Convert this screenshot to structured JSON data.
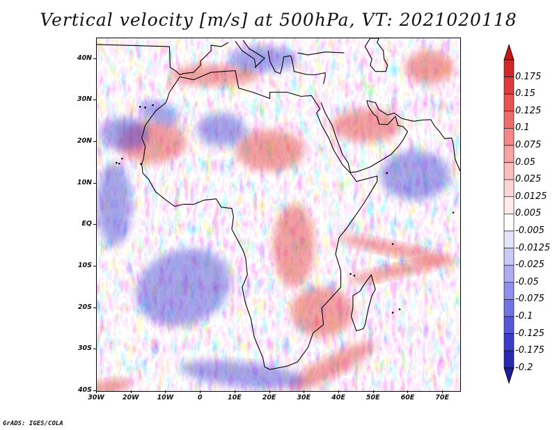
{
  "title": "Vertical velocity [m/s] at 500hPa, VT: 2021020118",
  "credit": "GrADS: IGES/COLA",
  "map": {
    "projection": "latlon",
    "lon_range": [
      -30,
      75
    ],
    "lat_range": [
      -40,
      45
    ],
    "x_ticks": [
      {
        "value": -30,
        "label": "30W"
      },
      {
        "value": -20,
        "label": "20W"
      },
      {
        "value": -10,
        "label": "10W"
      },
      {
        "value": 0,
        "label": "0"
      },
      {
        "value": 10,
        "label": "10E"
      },
      {
        "value": 20,
        "label": "20E"
      },
      {
        "value": 30,
        "label": "30E"
      },
      {
        "value": 40,
        "label": "40E"
      },
      {
        "value": 50,
        "label": "50E"
      },
      {
        "value": 60,
        "label": "60E"
      },
      {
        "value": 70,
        "label": "70E"
      }
    ],
    "y_ticks": [
      {
        "value": 40,
        "label": "40N"
      },
      {
        "value": 30,
        "label": "30N"
      },
      {
        "value": 20,
        "label": "20N"
      },
      {
        "value": 10,
        "label": "10N"
      },
      {
        "value": 0,
        "label": "EQ"
      },
      {
        "value": -10,
        "label": "10S"
      },
      {
        "value": -20,
        "label": "20S"
      },
      {
        "value": -30,
        "label": "30S"
      },
      {
        "value": -40,
        "label": "40S"
      }
    ],
    "field": "vertical velocity",
    "units": "m/s",
    "level": "500hPa",
    "valid_time": "2021020118",
    "features": {
      "africa_coast": [
        [
          -17,
          21
        ],
        [
          -16,
          24
        ],
        [
          -13,
          27.5
        ],
        [
          -10,
          29.5
        ],
        [
          -9,
          32
        ],
        [
          -6,
          35.7
        ],
        [
          -2,
          35
        ],
        [
          3,
          36.8
        ],
        [
          10,
          37.2
        ],
        [
          11,
          33
        ],
        [
          15,
          32
        ],
        [
          20,
          30.5
        ],
        [
          20,
          32
        ],
        [
          25,
          32
        ],
        [
          29,
          31
        ],
        [
          32,
          31.2
        ],
        [
          34.5,
          28
        ],
        [
          33.5,
          27
        ],
        [
          35,
          24
        ],
        [
          37,
          21
        ],
        [
          38.5,
          18
        ],
        [
          41,
          14.5
        ],
        [
          43.3,
          12.5
        ],
        [
          45,
          10.5
        ],
        [
          51,
          11.8
        ],
        [
          51,
          10.5
        ],
        [
          47,
          5
        ],
        [
          42,
          -1
        ],
        [
          40,
          -3
        ],
        [
          39,
          -7
        ],
        [
          40.5,
          -11
        ],
        [
          40.5,
          -15
        ],
        [
          35,
          -20
        ],
        [
          35.5,
          -24
        ],
        [
          32.5,
          -26
        ],
        [
          31,
          -29.5
        ],
        [
          28,
          -33
        ],
        [
          25,
          -34
        ],
        [
          20,
          -34.8
        ],
        [
          18.5,
          -34.2
        ],
        [
          18,
          -32
        ],
        [
          15.5,
          -27
        ],
        [
          14.5,
          -22.5
        ],
        [
          13,
          -19
        ],
        [
          12,
          -15
        ],
        [
          13.5,
          -12
        ],
        [
          13,
          -8
        ],
        [
          12.2,
          -6
        ],
        [
          9,
          -1
        ],
        [
          9.5,
          2
        ],
        [
          9,
          4
        ],
        [
          6,
          4.3
        ],
        [
          4.5,
          6.3
        ],
        [
          1,
          6
        ],
        [
          -2,
          5
        ],
        [
          -5,
          5
        ],
        [
          -7.5,
          4.5
        ],
        [
          -10,
          6
        ],
        [
          -13,
          8
        ],
        [
          -15,
          11
        ],
        [
          -16.7,
          12.5
        ],
        [
          -17,
          14.7
        ],
        [
          -16.5,
          16
        ],
        [
          -16,
          19
        ],
        [
          -17,
          21
        ]
      ],
      "madagascar": [
        [
          49.3,
          -12
        ],
        [
          50.5,
          -15.5
        ],
        [
          49.5,
          -17
        ],
        [
          48.5,
          -20
        ],
        [
          47.5,
          -24
        ],
        [
          47,
          -25
        ],
        [
          45,
          -25.5
        ],
        [
          43.5,
          -22
        ],
        [
          44,
          -20
        ],
        [
          44,
          -17
        ],
        [
          46,
          -16
        ],
        [
          47.5,
          -14
        ],
        [
          49.3,
          -12
        ]
      ],
      "arabia": [
        [
          34.8,
          29.5
        ],
        [
          36,
          27
        ],
        [
          38,
          24
        ],
        [
          39,
          21.5
        ],
        [
          41,
          17
        ],
        [
          42.6,
          15
        ],
        [
          43.3,
          12.7
        ],
        [
          45,
          12.8
        ],
        [
          49,
          14
        ],
        [
          52,
          15.5
        ],
        [
          55,
          17
        ],
        [
          57,
          18.8
        ],
        [
          58.5,
          20.5
        ],
        [
          59.8,
          22.5
        ],
        [
          58.5,
          23.7
        ],
        [
          57,
          24
        ],
        [
          56.3,
          26.2
        ],
        [
          55.5,
          25.5
        ],
        [
          54,
          24.2
        ],
        [
          51.6,
          24.3
        ],
        [
          51,
          26
        ],
        [
          50,
          26.7
        ],
        [
          48.5,
          28.5
        ],
        [
          48,
          30
        ]
      ],
      "europe_south": [
        [
          -30,
          43.5
        ],
        [
          -9,
          43
        ],
        [
          -8.8,
          38
        ],
        [
          -7,
          37
        ],
        [
          -6,
          36.2
        ],
        [
          -5,
          36.5
        ],
        [
          -2,
          36.8
        ],
        [
          0,
          38.5
        ],
        [
          0,
          39.5
        ],
        [
          3,
          42
        ],
        [
          3,
          43.3
        ],
        [
          6,
          43
        ],
        [
          8,
          44
        ]
      ],
      "italy": [
        [
          10,
          44.3
        ],
        [
          12,
          42
        ],
        [
          15.5,
          40
        ],
        [
          16,
          38
        ],
        [
          15.7,
          38
        ],
        [
          17,
          39
        ],
        [
          18.5,
          40.2
        ],
        [
          16,
          41.5
        ],
        [
          14,
          42.5
        ],
        [
          12.3,
          44.5
        ]
      ],
      "greece_turkey": [
        [
          19.5,
          42
        ],
        [
          20,
          39.5
        ],
        [
          21.5,
          37
        ],
        [
          23,
          36.5
        ],
        [
          23.5,
          38
        ],
        [
          24,
          40.5
        ],
        [
          26,
          40.8
        ],
        [
          26.5,
          39.5
        ],
        [
          27,
          37
        ],
        [
          28.5,
          36.7
        ],
        [
          30.5,
          36.3
        ],
        [
          33,
          36.2
        ],
        [
          36,
          36.7
        ],
        [
          36,
          35.8
        ],
        [
          35.5,
          34
        ]
      ],
      "black_sea_south": [
        [
          28,
          41.5
        ],
        [
          31,
          41
        ],
        [
          36,
          41.7
        ],
        [
          41.5,
          41.5
        ]
      ],
      "caspian": [
        [
          49,
          45
        ],
        [
          47.5,
          43
        ],
        [
          48.5,
          41.5
        ],
        [
          49.5,
          40
        ],
        [
          49,
          38.5
        ],
        [
          50.5,
          37
        ],
        [
          53.5,
          37
        ],
        [
          54,
          38.5
        ],
        [
          53,
          40
        ],
        [
          52.8,
          42
        ],
        [
          51,
          44
        ],
        [
          51.5,
          45
        ]
      ],
      "iran_coast": [
        [
          48,
          30
        ],
        [
          50.5,
          29.5
        ],
        [
          51.5,
          27.8
        ],
        [
          54,
          26.5
        ],
        [
          56,
          27
        ],
        [
          58,
          25.7
        ],
        [
          61.5,
          25
        ],
        [
          64,
          25.3
        ],
        [
          66.5,
          25.4
        ],
        [
          67.5,
          24
        ],
        [
          69,
          22.5
        ],
        [
          70.5,
          20.8
        ],
        [
          72.5,
          21
        ],
        [
          73,
          19.5
        ],
        [
          73.5,
          16
        ],
        [
          74.2,
          14.5
        ],
        [
          75,
          13
        ]
      ],
      "ocean_dots": [
        [
          -17.2,
          14.7
        ],
        [
          -22.7,
          16
        ],
        [
          -24.3,
          15
        ],
        [
          -23.5,
          14.8
        ],
        [
          -16,
          28.3
        ],
        [
          -17.5,
          28.5
        ],
        [
          -13.8,
          28.9
        ],
        [
          55.5,
          -4.6
        ],
        [
          57.5,
          -20.3
        ],
        [
          55.5,
          -21.1
        ],
        [
          43.3,
          -11.8
        ],
        [
          44.4,
          -12.2
        ],
        [
          53.8,
          12.5
        ],
        [
          73,
          3
        ]
      ]
    },
    "regions": {
      "up_bands": [
        {
          "cx": 38,
          "cy": -34,
          "rx": 14,
          "ry": 2.5,
          "rot": 28
        },
        {
          "cx": 57,
          "cy": -6,
          "rx": 18,
          "ry": 1.6,
          "rot": -12
        },
        {
          "cx": 57,
          "cy": -11,
          "rx": 15,
          "ry": 1.5,
          "rot": 12
        },
        {
          "cx": -26,
          "cy": -39,
          "rx": 6,
          "ry": 1.8,
          "rot": 10
        },
        {
          "cx": 4,
          "cy": 36,
          "rx": 13,
          "ry": 2.5,
          "rot": 0
        },
        {
          "cx": 35,
          "cy": -21,
          "rx": 9,
          "ry": 6,
          "rot": 0
        },
        {
          "cx": 66,
          "cy": 38,
          "rx": 7,
          "ry": 4,
          "rot": 0
        },
        {
          "cx": 27,
          "cy": -5,
          "rx": 6,
          "ry": 10,
          "rot": 0
        },
        {
          "cx": 20,
          "cy": 18,
          "rx": 10,
          "ry": 5,
          "rot": 0
        },
        {
          "cx": -14,
          "cy": 20,
          "rx": 10,
          "ry": 5,
          "rot": 0
        },
        {
          "cx": 48,
          "cy": 24,
          "rx": 10,
          "ry": 4,
          "rot": 0
        }
      ],
      "down_bands": [
        {
          "cx": 12,
          "cy": -36,
          "rx": 18,
          "ry": 3,
          "rot": -6
        },
        {
          "cx": -22,
          "cy": 22,
          "rx": 7,
          "ry": 4,
          "rot": 0
        },
        {
          "cx": -12,
          "cy": 27,
          "rx": 6,
          "ry": 2.5,
          "rot": -20
        },
        {
          "cx": 18,
          "cy": 40,
          "rx": 10,
          "ry": 3,
          "rot": 0
        },
        {
          "cx": -5,
          "cy": -15,
          "rx": 14,
          "ry": 9,
          "rot": 20
        },
        {
          "cx": 6,
          "cy": 23,
          "rx": 7,
          "ry": 4,
          "rot": 0
        },
        {
          "cx": 62,
          "cy": 12,
          "rx": 10,
          "ry": 6,
          "rot": 0
        },
        {
          "cx": -25,
          "cy": 5,
          "rx": 5,
          "ry": 10,
          "rot": 0
        }
      ]
    }
  },
  "colorbar": {
    "levels": [
      {
        "label": "0.175",
        "color": "#d02828"
      },
      {
        "label": "0.15",
        "color": "#de3c3c"
      },
      {
        "label": "0.125",
        "color": "#e85454"
      },
      {
        "label": "0.1",
        "color": "#ee6c6c"
      },
      {
        "label": "0.075",
        "color": "#f28888"
      },
      {
        "label": "0.05",
        "color": "#f6a4a4"
      },
      {
        "label": "0.025",
        "color": "#f9bebe"
      },
      {
        "label": "0.0125",
        "color": "#fcd6d6"
      },
      {
        "label": "0.005",
        "color": "#feecec"
      },
      {
        "label": "-0.005",
        "color": "#ffffff"
      },
      {
        "label": "-0.0125",
        "color": "#e4e4fc"
      },
      {
        "label": "-0.025",
        "color": "#cacaf6"
      },
      {
        "label": "-0.05",
        "color": "#aeaef0"
      },
      {
        "label": "-0.075",
        "color": "#9090e8"
      },
      {
        "label": "-0.1",
        "color": "#7474e0"
      },
      {
        "label": "-0.125",
        "color": "#5858d6"
      },
      {
        "label": "-0.175",
        "color": "#3c3cc6"
      },
      {
        "label": "-0.2",
        "color": "#2a2ab0"
      }
    ],
    "top_tip_color": "#c01818",
    "bottom_tip_color": "#1c1c9c"
  }
}
